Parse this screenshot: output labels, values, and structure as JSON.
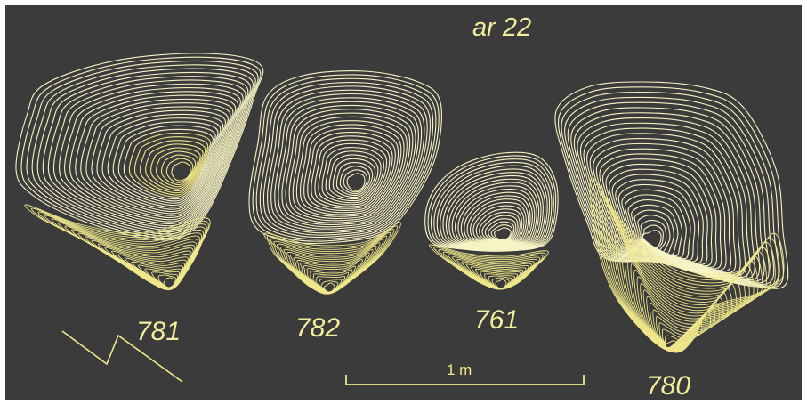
{
  "colors": {
    "background": "#3b3b3b",
    "border": "#ffffff",
    "contour": "#f7f3c4",
    "dense_contour": "#efe78a",
    "label": "#f2ee9c"
  },
  "title": "ar 22",
  "scale_bar": {
    "label": "1 m"
  },
  "north_arrow": {
    "icon": "north-arrow-icon"
  },
  "pits": [
    {
      "id": "781",
      "label": "781"
    },
    {
      "id": "782",
      "label": "782"
    },
    {
      "id": "761",
      "label": "761"
    },
    {
      "id": "780",
      "label": "780"
    }
  ]
}
